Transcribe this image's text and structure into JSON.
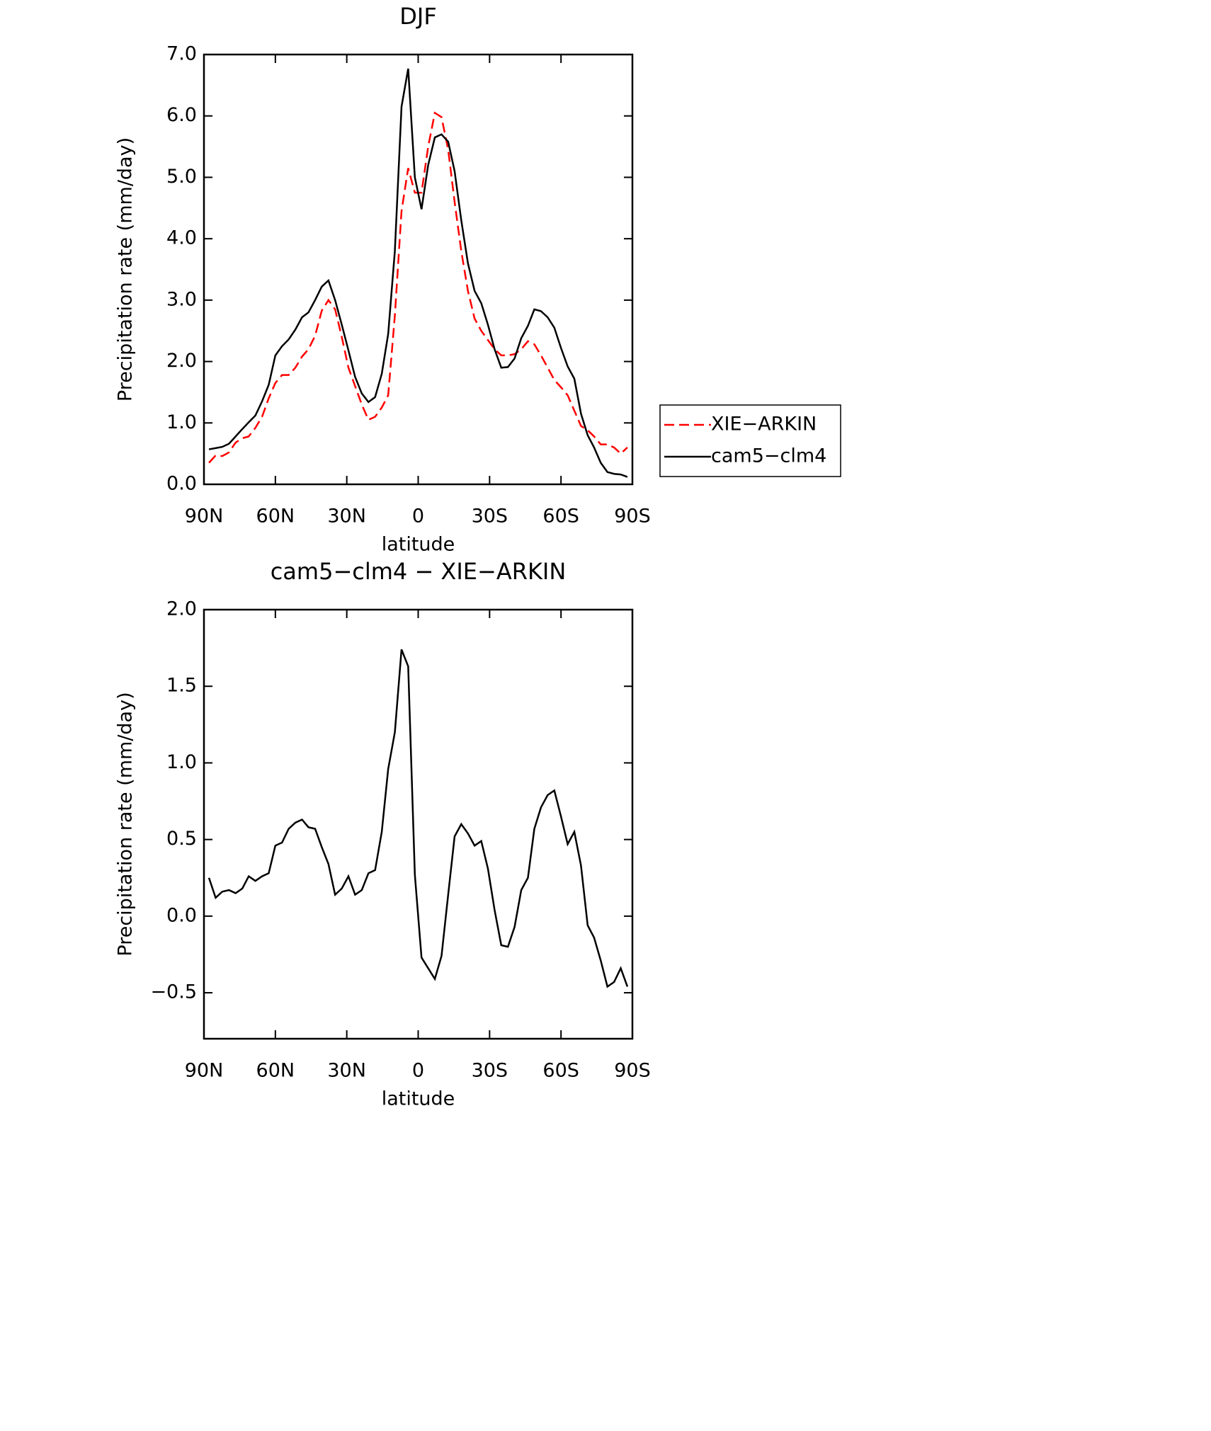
{
  "chart_data": [
    {
      "type": "line",
      "title": "DJF",
      "xlabel": "latitude",
      "ylabel": "Precipitation rate (mm/day)",
      "x": [
        87.9,
        85.1,
        82.3,
        79.5,
        76.7,
        73.9,
        71.2,
        68.4,
        65.6,
        62.8,
        60.0,
        57.2,
        54.4,
        51.6,
        48.8,
        46.1,
        43.3,
        40.5,
        37.7,
        34.9,
        32.1,
        29.3,
        26.5,
        23.7,
        20.9,
        18.1,
        15.3,
        12.6,
        9.8,
        7.0,
        4.2,
        1.4,
        -1.4,
        -4.2,
        -7.0,
        -9.8,
        -12.6,
        -15.3,
        -18.1,
        -20.9,
        -23.7,
        -26.5,
        -29.3,
        -32.1,
        -34.9,
        -37.7,
        -40.5,
        -43.3,
        -46.1,
        -48.8,
        -51.6,
        -54.4,
        -57.2,
        -60.0,
        -62.8,
        -65.6,
        -68.4,
        -71.2,
        -73.9,
        -76.7,
        -79.5,
        -82.3,
        -85.1,
        -87.9
      ],
      "series": [
        {
          "name": "XIE−ARKIN",
          "color": "#ff0000",
          "dash": true,
          "values": [
            0.35,
            0.47,
            0.46,
            0.52,
            0.68,
            0.75,
            0.78,
            0.92,
            1.1,
            1.4,
            1.65,
            1.78,
            1.78,
            1.9,
            2.08,
            2.2,
            2.42,
            2.83,
            3.0,
            2.85,
            2.4,
            1.9,
            1.6,
            1.3,
            1.05,
            1.1,
            1.25,
            1.45,
            2.75,
            4.45,
            5.15,
            4.75,
            4.75,
            5.5,
            6.05,
            5.98,
            5.45,
            4.6,
            3.8,
            3.15,
            2.7,
            2.5,
            2.35,
            2.2,
            2.1,
            2.1,
            2.12,
            2.2,
            2.33,
            2.28,
            2.1,
            1.9,
            1.7,
            1.58,
            1.45,
            1.2,
            0.95,
            0.88,
            0.78,
            0.65,
            0.65,
            0.6,
            0.5,
            0.6
          ]
        },
        {
          "name": "cam5−clm4",
          "color": "#000000",
          "dash": false,
          "values": [
            0.57,
            0.59,
            0.61,
            0.66,
            0.78,
            0.9,
            1.01,
            1.12,
            1.35,
            1.62,
            2.1,
            2.25,
            2.36,
            2.52,
            2.72,
            2.8,
            3.0,
            3.22,
            3.32,
            3.0,
            2.6,
            2.18,
            1.75,
            1.48,
            1.34,
            1.42,
            1.8,
            2.45,
            3.8,
            6.15,
            6.77,
            5.0,
            4.48,
            5.2,
            5.65,
            5.7,
            5.58,
            5.1,
            4.3,
            3.6,
            3.15,
            2.95,
            2.6,
            2.2,
            1.9,
            1.91,
            2.05,
            2.38,
            2.58,
            2.85,
            2.82,
            2.72,
            2.55,
            2.22,
            1.92,
            1.72,
            1.15,
            0.8,
            0.6,
            0.35,
            0.2,
            0.17,
            0.16,
            0.12
          ]
        }
      ],
      "xlim": [
        90,
        -90
      ],
      "xticks": [
        {
          "value": 90,
          "label": "90N"
        },
        {
          "value": 60,
          "label": "60N"
        },
        {
          "value": 30,
          "label": "30N"
        },
        0,
        {
          "value": -30,
          "label": "30S"
        },
        {
          "value": -60,
          "label": "60S"
        },
        {
          "value": -90,
          "label": "90S"
        }
      ],
      "ylim": [
        0,
        7
      ],
      "yticks": [
        {
          "value": 0,
          "label": "0.0"
        },
        {
          "value": 1,
          "label": "1.0"
        },
        {
          "value": 2,
          "label": "2.0"
        },
        {
          "value": 3,
          "label": "3.0"
        },
        {
          "value": 4,
          "label": "4.0"
        },
        {
          "value": 5,
          "label": "5.0"
        },
        {
          "value": 6,
          "label": "6.0"
        },
        {
          "value": 7,
          "label": "7.0"
        }
      ],
      "legend": "right"
    },
    {
      "type": "line",
      "title": "cam5−clm4 − XIE−ARKIN",
      "xlabel": "latitude",
      "ylabel": "Precipitation rate (mm/day)",
      "x": [
        87.9,
        85.1,
        82.3,
        79.5,
        76.7,
        73.9,
        71.2,
        68.4,
        65.6,
        62.8,
        60.0,
        57.2,
        54.4,
        51.6,
        48.8,
        46.1,
        43.3,
        40.5,
        37.7,
        34.9,
        32.1,
        29.3,
        26.5,
        23.7,
        20.9,
        18.1,
        15.3,
        12.6,
        9.8,
        7.0,
        4.2,
        1.4,
        -1.4,
        -4.2,
        -7.0,
        -9.8,
        -12.6,
        -15.3,
        -18.1,
        -20.9,
        -23.7,
        -26.5,
        -29.3,
        -32.1,
        -34.9,
        -37.7,
        -40.5,
        -43.3,
        -46.1,
        -48.8,
        -51.6,
        -54.4,
        -57.2,
        -60.0,
        -62.8,
        -65.6,
        -68.4,
        -71.2,
        -73.9,
        -76.7,
        -79.5,
        -82.3,
        -85.1,
        -87.9
      ],
      "series": [
        {
          "color": "#000000",
          "dash": false,
          "values": [
            0.25,
            0.12,
            0.16,
            0.17,
            0.15,
            0.18,
            0.26,
            0.23,
            0.26,
            0.28,
            0.46,
            0.48,
            0.57,
            0.61,
            0.63,
            0.58,
            0.57,
            0.45,
            0.34,
            0.14,
            0.18,
            0.26,
            0.14,
            0.17,
            0.28,
            0.3,
            0.55,
            0.96,
            1.2,
            1.74,
            1.63,
            0.27,
            -0.27,
            -0.34,
            -0.41,
            -0.26,
            0.14,
            0.52,
            0.6,
            0.54,
            0.46,
            0.49,
            0.31,
            0.04,
            -0.19,
            -0.2,
            -0.07,
            0.17,
            0.25,
            0.57,
            0.71,
            0.79,
            0.82,
            0.65,
            0.47,
            0.55,
            0.33,
            -0.06,
            -0.14,
            -0.29,
            -0.46,
            -0.43,
            -0.34,
            -0.46
          ]
        }
      ],
      "xlim": [
        90,
        -90
      ],
      "xticks": [
        {
          "value": 90,
          "label": "90N"
        },
        {
          "value": 60,
          "label": "60N"
        },
        {
          "value": 30,
          "label": "30N"
        },
        0,
        {
          "value": -30,
          "label": "30S"
        },
        {
          "value": -60,
          "label": "60S"
        },
        {
          "value": -90,
          "label": "90S"
        }
      ],
      "ylim": [
        -0.8,
        2.0
      ],
      "yticks": [
        {
          "value": -0.5,
          "label": "−0.5"
        },
        {
          "value": 0,
          "label": "0.0"
        },
        0.5,
        {
          "value": 1,
          "label": "1.0"
        },
        1.5,
        {
          "value": 2,
          "label": "2.0"
        }
      ]
    }
  ]
}
